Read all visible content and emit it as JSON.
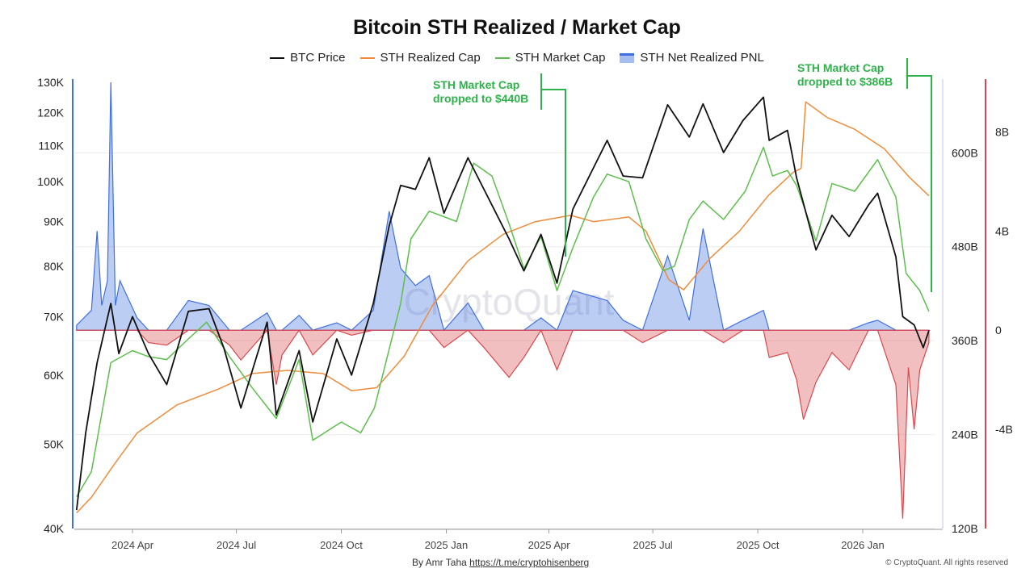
{
  "title": "Bitcoin STH Realized / Market Cap",
  "legend": [
    {
      "label": "BTC Price",
      "color": "#111111",
      "kind": "line"
    },
    {
      "label": "STH Realized Cap",
      "color": "#ef8c3a",
      "kind": "line"
    },
    {
      "label": "STH Market Cap",
      "color": "#5cbf4c",
      "kind": "line"
    },
    {
      "label": "STH Net Realized PNL",
      "color": "#3f6fe0",
      "kind": "area"
    }
  ],
  "annotations": [
    {
      "line1": "STH Market Cap",
      "line2": "dropped to $440B"
    },
    {
      "line1": "STH Market Cap",
      "line2": "dropped to $386B"
    }
  ],
  "footer": {
    "by": "By Amr Taha",
    "link": "https://t.me/cryptohisenberg",
    "copyright": "© CryptoQuant. All rights reserved"
  },
  "watermark": "CryptoQuant",
  "chart_data": {
    "type": "line",
    "x_ticks": [
      "2024 Apr",
      "2024 Jul",
      "2024 Oct",
      "2025 Jan",
      "2025 Apr",
      "2025 Jul",
      "2025 Oct",
      "2026 Jan"
    ],
    "x_range": [
      "2024-02-10",
      "2026-03-05"
    ],
    "left_axis": {
      "scale": "log",
      "range": [
        40000,
        130000
      ],
      "ticks": [
        {
          "v": 130000,
          "label": "130K"
        },
        {
          "v": 120000,
          "label": "120K"
        },
        {
          "v": 110000,
          "label": "110K"
        },
        {
          "v": 100000,
          "label": "100K"
        },
        {
          "v": 90000,
          "label": "90K"
        },
        {
          "v": 80000,
          "label": "80K"
        },
        {
          "v": 70000,
          "label": "70K"
        },
        {
          "v": 60000,
          "label": "60K"
        },
        {
          "v": 50000,
          "label": "50K"
        },
        {
          "v": 40000,
          "label": "40K"
        }
      ]
    },
    "mid_axis": {
      "scale": "linear",
      "unit": "USD",
      "range": [
        120000000000.0,
        690000000000.0
      ],
      "ticks": [
        {
          "v": 600000000000.0,
          "label": "600B"
        },
        {
          "v": 480000000000.0,
          "label": "480B"
        },
        {
          "v": 360000000000.0,
          "label": "360B"
        },
        {
          "v": 240000000000.0,
          "label": "240B"
        },
        {
          "v": 120000000000.0,
          "label": "120B"
        }
      ]
    },
    "right_axis": {
      "scale": "linear",
      "unit": "USD",
      "range": [
        -8000000000.0,
        10000000000.0
      ],
      "ticks": [
        {
          "v": 8000000000.0,
          "label": "8B"
        },
        {
          "v": 4000000000.0,
          "label": "4B"
        },
        {
          "v": 0,
          "label": "0"
        },
        {
          "v": -4000000000.0,
          "label": "-4B"
        }
      ]
    },
    "series": [
      {
        "name": "BTC Price",
        "axis": "left",
        "color": "#111111",
        "points": [
          [
            "2024-02-12",
            42000
          ],
          [
            "2024-02-20",
            51500
          ],
          [
            "2024-03-01",
            62000
          ],
          [
            "2024-03-13",
            72500
          ],
          [
            "2024-03-20",
            63500
          ],
          [
            "2024-04-01",
            70000
          ],
          [
            "2024-04-15",
            63500
          ],
          [
            "2024-05-01",
            58500
          ],
          [
            "2024-05-20",
            71000
          ],
          [
            "2024-06-07",
            71500
          ],
          [
            "2024-06-20",
            64500
          ],
          [
            "2024-07-05",
            55000
          ],
          [
            "2024-07-28",
            69000
          ],
          [
            "2024-08-05",
            54000
          ],
          [
            "2024-08-25",
            64000
          ],
          [
            "2024-09-06",
            53000
          ],
          [
            "2024-09-27",
            66000
          ],
          [
            "2024-10-10",
            60000
          ],
          [
            "2024-10-29",
            72500
          ],
          [
            "2024-11-12",
            89000
          ],
          [
            "2024-11-22",
            99000
          ],
          [
            "2024-12-05",
            98000
          ],
          [
            "2024-12-17",
            106500
          ],
          [
            "2024-12-30",
            92000
          ],
          [
            "2025-01-20",
            106500
          ],
          [
            "2025-02-03",
            98000
          ],
          [
            "2025-02-25",
            86000
          ],
          [
            "2025-03-10",
            79000
          ],
          [
            "2025-03-25",
            87000
          ],
          [
            "2025-04-08",
            76500
          ],
          [
            "2025-04-22",
            93000
          ],
          [
            "2025-05-22",
            111500
          ],
          [
            "2025-06-05",
            101500
          ],
          [
            "2025-06-22",
            101000
          ],
          [
            "2025-07-14",
            122500
          ],
          [
            "2025-08-02",
            112500
          ],
          [
            "2025-08-14",
            122800
          ],
          [
            "2025-09-01",
            108000
          ],
          [
            "2025-09-18",
            117500
          ],
          [
            "2025-10-06",
            125000
          ],
          [
            "2025-10-11",
            111500
          ],
          [
            "2025-10-27",
            114500
          ],
          [
            "2025-11-04",
            101000
          ],
          [
            "2025-11-21",
            83500
          ],
          [
            "2025-12-05",
            91500
          ],
          [
            "2025-12-20",
            86500
          ],
          [
            "2026-01-06",
            94000
          ],
          [
            "2026-01-14",
            97000
          ],
          [
            "2026-01-30",
            82000
          ],
          [
            "2026-02-05",
            70000
          ],
          [
            "2026-02-15",
            68500
          ],
          [
            "2026-02-23",
            64500
          ],
          [
            "2026-02-28",
            67500
          ]
        ]
      },
      {
        "name": "STH Realized Cap",
        "axis": "mid",
        "color": "#ef8c3a",
        "points": [
          [
            "2024-02-12",
            140000000000.0
          ],
          [
            "2024-02-25",
            160000000000.0
          ],
          [
            "2024-03-15",
            200000000000.0
          ],
          [
            "2024-04-05",
            242000000000.0
          ],
          [
            "2024-05-10",
            278000000000.0
          ],
          [
            "2024-06-15",
            298000000000.0
          ],
          [
            "2024-07-15",
            318000000000.0
          ],
          [
            "2024-08-15",
            322000000000.0
          ],
          [
            "2024-09-15",
            318000000000.0
          ],
          [
            "2024-10-10",
            296000000000.0
          ],
          [
            "2024-11-01",
            300000000000.0
          ],
          [
            "2024-11-25",
            340000000000.0
          ],
          [
            "2024-12-20",
            405000000000.0
          ],
          [
            "2025-01-20",
            462000000000.0
          ],
          [
            "2025-02-20",
            496000000000.0
          ],
          [
            "2025-03-20",
            512000000000.0
          ],
          [
            "2025-04-20",
            520000000000.0
          ],
          [
            "2025-05-10",
            512000000000.0
          ],
          [
            "2025-06-10",
            518000000000.0
          ],
          [
            "2025-06-25",
            500000000000.0
          ],
          [
            "2025-07-15",
            438000000000.0
          ],
          [
            "2025-07-28",
            425000000000.0
          ],
          [
            "2025-08-20",
            465000000000.0
          ],
          [
            "2025-09-15",
            500000000000.0
          ],
          [
            "2025-10-10",
            545000000000.0
          ],
          [
            "2025-11-01",
            575000000000.0
          ],
          [
            "2025-11-08",
            580000000000.0
          ],
          [
            "2025-11-12",
            665000000000.0
          ],
          [
            "2025-12-01",
            645000000000.0
          ],
          [
            "2025-12-25",
            630000000000.0
          ],
          [
            "2026-01-20",
            605000000000.0
          ],
          [
            "2026-02-10",
            570000000000.0
          ],
          [
            "2026-02-28",
            545000000000.0
          ]
        ]
      },
      {
        "name": "STH Market Cap",
        "axis": "left",
        "color": "#5cbf4c",
        "points": [
          [
            "2024-02-12",
            43500
          ],
          [
            "2024-02-25",
            46500
          ],
          [
            "2024-03-13",
            62000
          ],
          [
            "2024-04-01",
            64000
          ],
          [
            "2024-04-15",
            63000
          ],
          [
            "2024-05-01",
            62500
          ],
          [
            "2024-05-20",
            66000
          ],
          [
            "2024-06-05",
            69000
          ],
          [
            "2024-06-25",
            63000
          ],
          [
            "2024-07-15",
            58000
          ],
          [
            "2024-08-05",
            53500
          ],
          [
            "2024-08-25",
            62500
          ],
          [
            "2024-09-06",
            50500
          ],
          [
            "2024-10-01",
            53000
          ],
          [
            "2024-10-18",
            51500
          ],
          [
            "2024-10-30",
            55000
          ],
          [
            "2024-11-22",
            72500
          ],
          [
            "2024-12-01",
            86000
          ],
          [
            "2024-12-17",
            92500
          ],
          [
            "2025-01-10",
            90000
          ],
          [
            "2025-01-25",
            105000
          ],
          [
            "2025-02-10",
            101500
          ],
          [
            "2025-02-25",
            89500
          ],
          [
            "2025-03-10",
            79500
          ],
          [
            "2025-03-25",
            86500
          ],
          [
            "2025-04-08",
            75000
          ],
          [
            "2025-04-22",
            84000
          ],
          [
            "2025-05-10",
            96000
          ],
          [
            "2025-05-22",
            102000
          ],
          [
            "2025-06-10",
            100000
          ],
          [
            "2025-06-25",
            86000
          ],
          [
            "2025-07-10",
            79000
          ],
          [
            "2025-07-20",
            80000
          ],
          [
            "2025-08-02",
            90500
          ],
          [
            "2025-08-14",
            95000
          ],
          [
            "2025-09-01",
            90500
          ],
          [
            "2025-09-20",
            97500
          ],
          [
            "2025-10-06",
            109500
          ],
          [
            "2025-10-14",
            101500
          ],
          [
            "2025-10-27",
            103000
          ],
          [
            "2025-11-04",
            99000
          ],
          [
            "2025-11-21",
            85500
          ],
          [
            "2025-12-05",
            99500
          ],
          [
            "2025-12-25",
            97500
          ],
          [
            "2026-01-14",
            106000
          ],
          [
            "2026-01-30",
            96000
          ],
          [
            "2026-02-08",
            78500
          ],
          [
            "2026-02-20",
            75000
          ],
          [
            "2026-02-28",
            71000
          ]
        ]
      },
      {
        "name": "STH Net Realized PNL",
        "axis": "right",
        "color": "#3f6fe0",
        "negative_color": "#d9484d",
        "kind": "area",
        "points": [
          [
            "2024-02-12",
            200000000.0
          ],
          [
            "2024-02-25",
            800000000.0
          ],
          [
            "2024-03-01",
            4000000000.0
          ],
          [
            "2024-03-05",
            1000000000.0
          ],
          [
            "2024-03-10",
            2000000000.0
          ],
          [
            "2024-03-13",
            10000000000.0
          ],
          [
            "2024-03-17",
            1000000000.0
          ],
          [
            "2024-03-21",
            2000000000.0
          ],
          [
            "2024-04-05",
            500000000.0
          ],
          [
            "2024-04-15",
            -500000000.0
          ],
          [
            "2024-05-01",
            -600000000.0
          ],
          [
            "2024-05-20",
            1200000000.0
          ],
          [
            "2024-06-07",
            1000000000.0
          ],
          [
            "2024-06-25",
            -600000000.0
          ],
          [
            "2024-07-05",
            -1200000000.0
          ],
          [
            "2024-07-28",
            700000000.0
          ],
          [
            "2024-08-05",
            -2200000000.0
          ],
          [
            "2024-08-10",
            -1000000000.0
          ],
          [
            "2024-08-25",
            600000000.0
          ],
          [
            "2024-09-06",
            -1000000000.0
          ],
          [
            "2024-09-27",
            300000000.0
          ],
          [
            "2024-10-10",
            -200000000.0
          ],
          [
            "2024-10-29",
            800000000.0
          ],
          [
            "2024-11-12",
            4800000000.0
          ],
          [
            "2024-11-22",
            2500000000.0
          ],
          [
            "2024-12-05",
            1800000000.0
          ],
          [
            "2024-12-17",
            2200000000.0
          ],
          [
            "2024-12-30",
            -700000000.0
          ],
          [
            "2025-01-20",
            1100000000.0
          ],
          [
            "2025-02-03",
            -700000000.0
          ],
          [
            "2025-02-25",
            -1900000000.0
          ],
          [
            "2025-03-10",
            -1100000000.0
          ],
          [
            "2025-03-25",
            500000000.0
          ],
          [
            "2025-04-08",
            -1600000000.0
          ],
          [
            "2025-04-22",
            1600000000.0
          ],
          [
            "2025-05-22",
            1200000000.0
          ],
          [
            "2025-06-05",
            400000000.0
          ],
          [
            "2025-06-22",
            -500000000.0
          ],
          [
            "2025-07-14",
            3000000000.0
          ],
          [
            "2025-08-02",
            400000000.0
          ],
          [
            "2025-08-14",
            4100000000.0
          ],
          [
            "2025-09-01",
            -500000000.0
          ],
          [
            "2025-09-18",
            400000000.0
          ],
          [
            "2025-10-06",
            800000000.0
          ],
          [
            "2025-10-11",
            -1100000000.0
          ],
          [
            "2025-10-27",
            -900000000.0
          ],
          [
            "2025-11-04",
            -2000000000.0
          ],
          [
            "2025-11-10",
            -3600000000.0
          ],
          [
            "2025-11-21",
            -2100000000.0
          ],
          [
            "2025-12-05",
            -900000000.0
          ],
          [
            "2025-12-20",
            -1600000000.0
          ],
          [
            "2026-01-06",
            300000000.0
          ],
          [
            "2026-01-14",
            400000000.0
          ],
          [
            "2026-01-30",
            -2200000000.0
          ],
          [
            "2026-02-05",
            -7600000000.0
          ],
          [
            "2026-02-10",
            -1500000000.0
          ],
          [
            "2026-02-15",
            -4000000000.0
          ],
          [
            "2026-02-20",
            -1600000000.0
          ],
          [
            "2026-02-28",
            -500000000.0
          ]
        ]
      }
    ]
  }
}
